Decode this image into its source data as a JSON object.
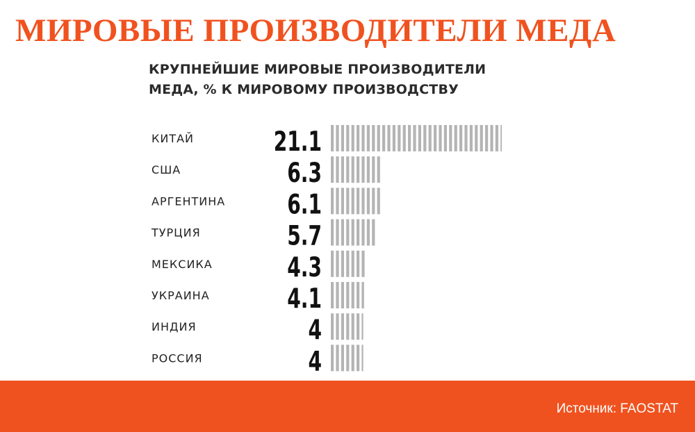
{
  "header": {
    "title": "МИРОВЫЕ ПРОИЗВОДИТЕЛИ МЕДА"
  },
  "colors": {
    "accent": "#f0521f",
    "bar": "#b4b4b4",
    "text": "#222222"
  },
  "chart_data": {
    "type": "bar",
    "orientation": "horizontal",
    "title": [
      "КРУПНЕЙШИЕ МИРОВЫЕ ПРОИЗВОДИТЕЛИ",
      "МЕДА, % К МИРОВОМУ ПРОИЗВОДСТВУ"
    ],
    "categories": [
      "КИТАЙ",
      "США",
      "АРГЕНТИНА",
      "ТУРЦИЯ",
      "МЕКСИКА",
      "УКРАИНА",
      "ИНДИЯ",
      "РОССИЯ"
    ],
    "values": [
      21.1,
      6.3,
      6.1,
      5.7,
      4.3,
      4.1,
      4,
      4
    ],
    "value_labels": [
      "21.1",
      "6.3",
      "6.1",
      "5.7",
      "4.3",
      "4.1",
      "4",
      "4"
    ],
    "xlim": [
      0,
      21.1
    ],
    "grid": false,
    "legend": "none"
  },
  "footer": {
    "source": "Источник: FAOSTAT"
  }
}
